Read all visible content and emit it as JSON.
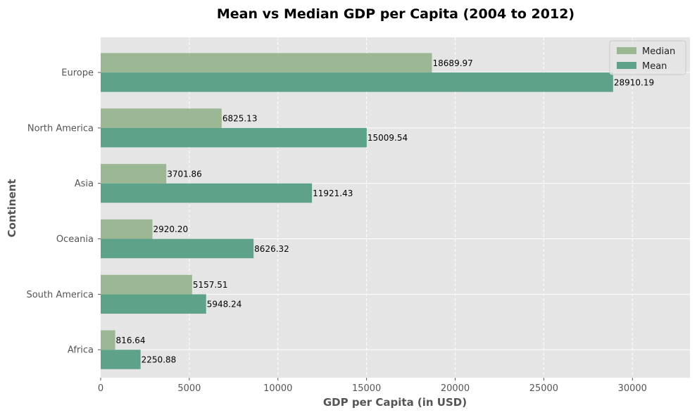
{
  "chart_data": {
    "type": "bar",
    "orientation": "horizontal",
    "title": "Mean vs Median GDP per Capita (2004 to 2012)",
    "xlabel": "GDP per Capita (in USD)",
    "ylabel": "Continent",
    "categories": [
      "Europe",
      "North America",
      "Asia",
      "Oceania",
      "South America",
      "Africa"
    ],
    "series": [
      {
        "name": "Median",
        "color": "#9bb793",
        "values": [
          18689.97,
          6825.13,
          3701.86,
          2920.2,
          5157.51,
          816.64
        ],
        "labels": [
          "18689.97",
          "6825.13",
          "3701.86",
          "2920.20",
          "5157.51",
          "816.64"
        ]
      },
      {
        "name": "Mean",
        "color": "#5fa28a",
        "values": [
          28910.19,
          15009.54,
          11921.43,
          8626.32,
          5948.24,
          2250.88
        ],
        "labels": [
          "28910.19",
          "15009.54",
          "11921.43",
          "8626.32",
          "5948.24",
          "2250.88"
        ]
      }
    ],
    "xlim": [
      0,
      33246
    ],
    "xticks": [
      0,
      5000,
      10000,
      15000,
      20000,
      25000,
      30000
    ],
    "xtick_labels": [
      "0",
      "5000",
      "10000",
      "15000",
      "20000",
      "25000",
      "30000"
    ],
    "grid": true,
    "legend_position": "top-right",
    "background_color": "#e5e5e5"
  }
}
